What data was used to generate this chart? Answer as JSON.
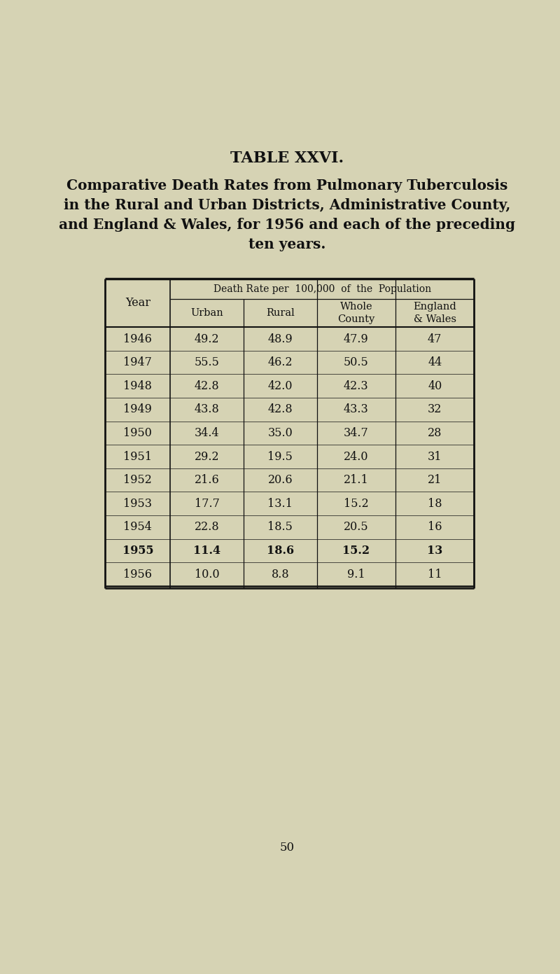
{
  "title": "TABLE XXVI.",
  "subtitle_lines": [
    "Comparative Death Rates from Pulmonary Tuberculosis",
    "in the Rural and Urban Districts, Administrative County,",
    "and England & Wales, for 1956 and each of the preceding",
    "ten years."
  ],
  "col_header_top": "Death Rate per  100,000  of  the  Population",
  "rows": [
    [
      "1946",
      "49.2",
      "48.9",
      "47.9",
      "47"
    ],
    [
      "1947",
      "55.5",
      "46.2",
      "50.5",
      "44"
    ],
    [
      "1948",
      "42.8",
      "42.0",
      "42.3",
      "40"
    ],
    [
      "1949",
      "43.8",
      "42.8",
      "43.3",
      "32"
    ],
    [
      "1950",
      "34.4",
      "35.0",
      "34.7",
      "28"
    ],
    [
      "1951",
      "29.2",
      "19.5",
      "24.0",
      "31"
    ],
    [
      "1952",
      "21.6",
      "20.6",
      "21.1",
      "21"
    ],
    [
      "1953",
      "17.7",
      "13.1",
      "15.2",
      "18"
    ],
    [
      "1954",
      "22.8",
      "18.5",
      "20.5",
      "16"
    ],
    [
      "1955",
      "11.4",
      "18.6",
      "15.2",
      "13"
    ],
    [
      "1956",
      "10.0",
      "8.8",
      "9.1",
      "11"
    ]
  ],
  "bold_rows": [
    9
  ],
  "page_number": "50",
  "bg_color": "#d6d3b4",
  "text_color": "#111111"
}
